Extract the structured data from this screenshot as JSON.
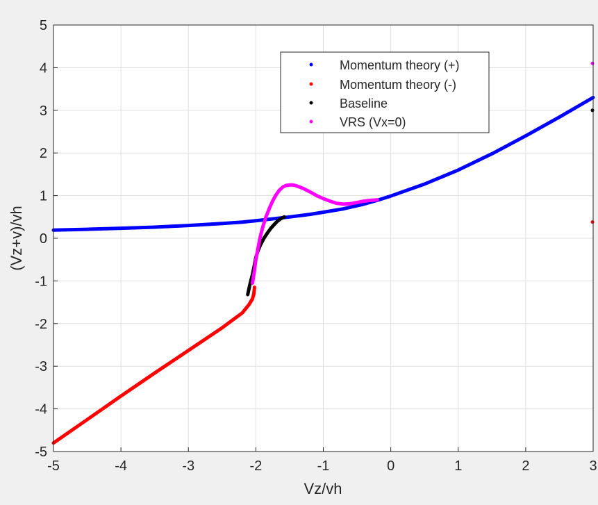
{
  "chart_data": {
    "type": "scatter",
    "title": "",
    "xlabel": "Vz/vh",
    "ylabel": "(Vz+v)/vh",
    "xlim": [
      -5,
      3
    ],
    "ylim": [
      -5,
      5
    ],
    "xticks": [
      -5,
      -4,
      -3,
      -2,
      -1,
      0,
      1,
      2,
      3
    ],
    "yticks": [
      -5,
      -4,
      -3,
      -2,
      -1,
      0,
      1,
      2,
      3,
      4,
      5
    ],
    "grid": true,
    "legend_position": "top-center",
    "series": [
      {
        "name": "Momentum theory (+)",
        "color": "#0000ff",
        "x": [
          -5,
          -4.5,
          -4,
          -3.5,
          -3,
          -2.5,
          -2.2,
          -2.0,
          -1.5,
          -1.2,
          -1.0,
          -0.7,
          -0.4,
          -0.2,
          0,
          0.5,
          1,
          1.5,
          2,
          2.5,
          3.0
        ],
        "y": [
          0.19,
          0.21,
          0.235,
          0.26,
          0.3,
          0.345,
          0.38,
          0.41,
          0.5,
          0.56,
          0.61,
          0.69,
          0.8,
          0.89,
          0.99,
          1.27,
          1.6,
          1.98,
          2.4,
          2.84,
          3.3
        ]
      },
      {
        "name": "Momentum theory (-)",
        "color": "#ff0000",
        "x": [
          -5,
          -4.5,
          -4,
          -3.5,
          -3,
          -2.5,
          -2.2,
          -2.1,
          -2.05,
          -2.03,
          -2.02
        ],
        "y": [
          -4.8,
          -4.25,
          -3.7,
          -3.16,
          -2.63,
          -2.1,
          -1.75,
          -1.55,
          -1.42,
          -1.3,
          -1.15
        ]
      },
      {
        "name": "Baseline",
        "color": "#000000",
        "x": [
          -2.12,
          -2.09,
          -2.05,
          -2.02,
          -2.0,
          -1.97,
          -1.93,
          -1.88,
          -1.83,
          -1.78,
          -1.73,
          -1.68,
          -1.63,
          -1.58
        ],
        "y": [
          -1.32,
          -1.1,
          -0.85,
          -0.62,
          -0.45,
          -0.3,
          -0.15,
          0.0,
          0.12,
          0.23,
          0.32,
          0.4,
          0.46,
          0.5
        ]
      },
      {
        "name": "VRS (Vx=0)",
        "color": "#ff00ff",
        "x": [
          -2.05,
          -2.02,
          -2.0,
          -1.97,
          -1.94,
          -1.9,
          -1.85,
          -1.8,
          -1.75,
          -1.7,
          -1.65,
          -1.6,
          -1.55,
          -1.5,
          -1.45,
          -1.4,
          -1.3,
          -1.2,
          -1.1,
          -1.0,
          -0.9,
          -0.8,
          -0.7,
          -0.6,
          -0.5,
          -0.4,
          -0.3,
          -0.2
        ],
        "y": [
          -1.05,
          -0.75,
          -0.5,
          -0.25,
          0.0,
          0.25,
          0.5,
          0.7,
          0.88,
          1.02,
          1.13,
          1.2,
          1.24,
          1.25,
          1.25,
          1.23,
          1.17,
          1.09,
          1.0,
          0.93,
          0.87,
          0.82,
          0.8,
          0.81,
          0.84,
          0.87,
          0.89,
          0.9
        ]
      }
    ],
    "edge_points": [
      {
        "x": 3,
        "y": 4.1,
        "color": "#ff00ff"
      },
      {
        "x": 3,
        "y": 3.0,
        "color": "#000000"
      },
      {
        "x": 3,
        "y": 0.38,
        "color": "#ff0000"
      }
    ]
  }
}
